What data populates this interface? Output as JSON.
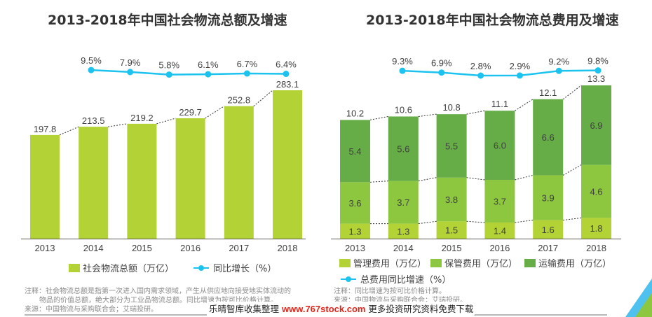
{
  "chart_data": [
    {
      "type": "bar",
      "title": "2013-2018年中国社会物流总额及增速",
      "categories": [
        "2013",
        "2014",
        "2015",
        "2016",
        "2017",
        "2018"
      ],
      "series": [
        {
          "name": "社会物流总额（万亿）",
          "kind": "bar",
          "color": "#b2d235",
          "values": [
            197.8,
            213.5,
            219.2,
            229.7,
            252.8,
            283.1
          ],
          "labels": [
            "197.8",
            "213.5",
            "219.2",
            "229.7",
            "252.8",
            "283.1"
          ]
        },
        {
          "name": "同比增长（%）",
          "kind": "line",
          "color": "#1cc3ef",
          "values": [
            9.5,
            7.9,
            5.8,
            6.1,
            6.7,
            6.4
          ],
          "labels": [
            "9.5%",
            "7.9%",
            "5.8%",
            "6.1%",
            "6.7%",
            "6.4%"
          ]
        }
      ],
      "xlabel": "",
      "ylabel": "",
      "ylim": [
        0,
        300
      ],
      "grid": false,
      "legend": "bottom"
    },
    {
      "type": "bar",
      "stacked": true,
      "title": "2013-2018年中国社会物流总费用及增速",
      "categories": [
        "2013",
        "2014",
        "2015",
        "2016",
        "2017",
        "2018"
      ],
      "series": [
        {
          "name": "管理费用（万亿）",
          "kind": "bar",
          "color": "#b2d235",
          "values": [
            1.3,
            1.3,
            1.5,
            1.4,
            1.6,
            1.8
          ],
          "labels": [
            "1.3",
            "1.3",
            "1.5",
            "1.4",
            "1.6",
            "1.8"
          ]
        },
        {
          "name": "保管费用（万亿）",
          "kind": "bar",
          "color": "#8dc63f",
          "values": [
            3.6,
            3.7,
            3.8,
            3.7,
            3.9,
            4.6
          ],
          "labels": [
            "3.6",
            "3.7",
            "3.8",
            "3.7",
            "3.9",
            "4.6"
          ]
        },
        {
          "name": "运输费用（万亿）",
          "kind": "bar",
          "color": "#66ad47",
          "values": [
            5.4,
            5.6,
            5.5,
            6.0,
            6.6,
            6.9
          ],
          "labels": [
            "5.4",
            "5.6",
            "5.5",
            "6.0",
            "6.6",
            "6.9"
          ]
        },
        {
          "name": "总费用同比增速（%）",
          "kind": "line",
          "color": "#1cc3ef",
          "values": [
            9.3,
            6.9,
            2.8,
            2.9,
            9.2,
            9.8
          ],
          "labels": [
            "9.3%",
            "6.9%",
            "2.8%",
            "2.9%",
            "9.2%",
            "9.8%"
          ]
        }
      ],
      "totals": [
        10.2,
        10.6,
        10.8,
        11.1,
        12.1,
        13.3
      ],
      "total_labels": [
        "10.2",
        "10.6",
        "10.8",
        "11.1",
        "12.1",
        "13.3"
      ],
      "xlabel": "",
      "ylabel": "",
      "ylim": [
        0,
        14
      ],
      "grid": false,
      "legend": "bottom"
    }
  ],
  "titles": {
    "left": "2013-2018年中国社会物流总额及增速",
    "right": "2013-2018年中国社会物流总费用及增速"
  },
  "legends": {
    "left_bar": "社会物流总额（万亿）",
    "left_line": "同比增长（%）",
    "right_mgmt": "管理费用（万亿）",
    "right_storage": "保管费用（万亿）",
    "right_transport": "运输费用（万亿）",
    "right_line": "总费用同比增速（%）"
  },
  "notes": {
    "left_note_1": "注释：社会物流总额是指第一次进入国内需求领域，产生从供应地向接受地实体流动的",
    "left_note_2": "物品的价值总额，绝大部分为工业品物流总额。同比增速为按可比价格计算。",
    "left_source": "来源：中国物流与采购联合会；艾瑞投研。",
    "right_note_1": "注释：同比增速为按可比价格计算。",
    "right_source": "来源：中国物流与采购联合会；艾瑞投研。"
  },
  "watermark": {
    "prefix": "乐晴智库收集整理 ",
    "url": "www.767stock.com",
    "suffix": " 更多投资研究资料免费下载"
  },
  "colors": {
    "line": "#1cc3ef",
    "bar_total": "#b2d235",
    "mgmt": "#b2d235",
    "storage": "#8dc63f",
    "transport": "#66ad47"
  }
}
